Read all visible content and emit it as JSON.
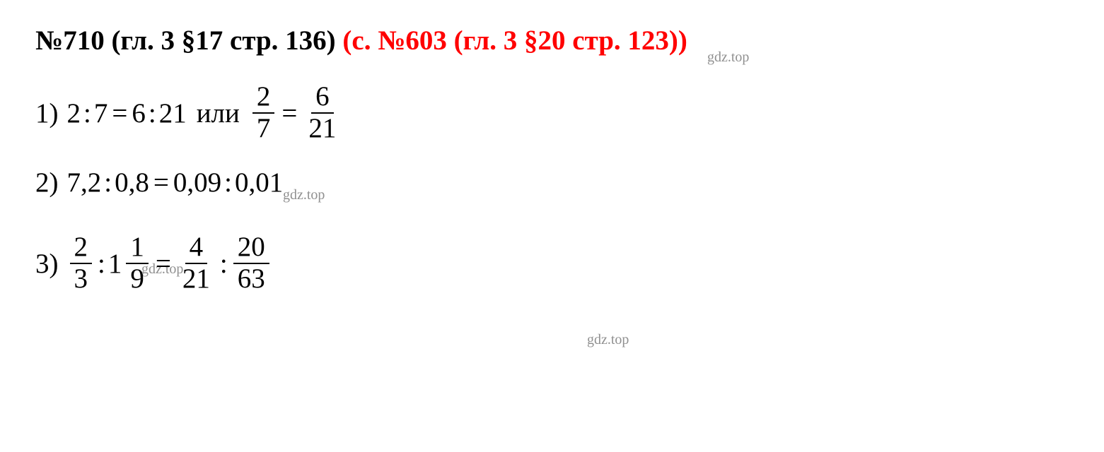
{
  "header": {
    "black": "№710 (гл. 3 §17 стр. 136)",
    "red": "(с. №603 (гл. 3 §20 стр. 123))"
  },
  "watermark": "gdz.top",
  "problems": {
    "p1": {
      "number": "1)",
      "left_a": "2",
      "left_b": "7",
      "eq": "=",
      "right_a": "6",
      "right_b": "21",
      "or_text": "или",
      "frac1_num": "2",
      "frac1_den": "7",
      "frac2_num": "6",
      "frac2_den": "21"
    },
    "p2": {
      "number": "2)",
      "left_a": "7,2",
      "left_b": "0,8",
      "eq": "=",
      "right_a": "0,09",
      "right_b": "0,01"
    },
    "p3": {
      "number": "3)",
      "frac1_num": "2",
      "frac1_den": "3",
      "mixed_whole": "1",
      "mixed_num": "1",
      "mixed_den": "9",
      "eq": "=",
      "frac2_num": "4",
      "frac2_den": "21",
      "frac3_num": "20",
      "frac3_den": "63"
    }
  },
  "colors": {
    "black": "#000000",
    "red": "#ff0000",
    "watermark": "#909090",
    "background": "#ffffff"
  },
  "typography": {
    "header_fontsize": 39,
    "body_fontsize": 39,
    "watermark_fontsize": 20,
    "font_family": "Times New Roman"
  }
}
